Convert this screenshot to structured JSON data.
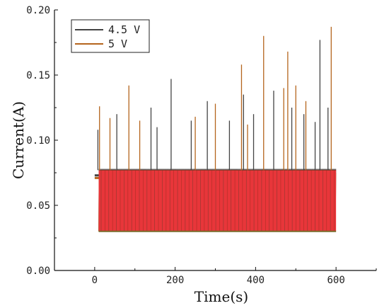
{
  "chart_data": {
    "type": "line",
    "title": "",
    "xlabel": "Time(s)",
    "ylabel": "Current(A)",
    "xlim": [
      -100,
      700
    ],
    "ylim": [
      0.0,
      0.2
    ],
    "x_ticks": [
      0,
      200,
      400,
      600
    ],
    "x_tick_labels": [
      "0",
      "200",
      "400",
      "600"
    ],
    "y_ticks": [
      0.0,
      0.05,
      0.1,
      0.15,
      0.2
    ],
    "y_tick_labels": [
      "0.00",
      "0.05",
      "0.10",
      "0.15",
      "0.20"
    ],
    "grid": false,
    "legend_position": "top-left",
    "series": [
      {
        "name": "4.5 V",
        "color": "#444444",
        "baseline": {
          "x_start": 10,
          "x_end": 600,
          "low": 0.03,
          "high": 0.078
        },
        "initial_segment": {
          "x_start": 0,
          "x_end": 10,
          "value": 0.073
        },
        "spikes": [
          {
            "x": 8,
            "y": 0.108
          },
          {
            "x": 55,
            "y": 0.12
          },
          {
            "x": 140,
            "y": 0.125
          },
          {
            "x": 155,
            "y": 0.11
          },
          {
            "x": 190,
            "y": 0.147
          },
          {
            "x": 240,
            "y": 0.115
          },
          {
            "x": 280,
            "y": 0.13
          },
          {
            "x": 335,
            "y": 0.115
          },
          {
            "x": 370,
            "y": 0.135
          },
          {
            "x": 395,
            "y": 0.12
          },
          {
            "x": 445,
            "y": 0.138
          },
          {
            "x": 490,
            "y": 0.125
          },
          {
            "x": 520,
            "y": 0.12
          },
          {
            "x": 548,
            "y": 0.114
          },
          {
            "x": 560,
            "y": 0.177
          },
          {
            "x": 580,
            "y": 0.125
          }
        ]
      },
      {
        "name": "5 V",
        "color": "#b5651d",
        "baseline": {
          "x_start": 10,
          "x_end": 600,
          "low": 0.03,
          "high": 0.075
        },
        "initial_segment": {
          "x_start": 0,
          "x_end": 10,
          "value": 0.071
        },
        "spikes": [
          {
            "x": 12,
            "y": 0.126
          },
          {
            "x": 38,
            "y": 0.117
          },
          {
            "x": 85,
            "y": 0.142
          },
          {
            "x": 112,
            "y": 0.115
          },
          {
            "x": 250,
            "y": 0.118
          },
          {
            "x": 300,
            "y": 0.128
          },
          {
            "x": 365,
            "y": 0.158
          },
          {
            "x": 380,
            "y": 0.112
          },
          {
            "x": 420,
            "y": 0.18
          },
          {
            "x": 470,
            "y": 0.14
          },
          {
            "x": 480,
            "y": 0.168
          },
          {
            "x": 500,
            "y": 0.142
          },
          {
            "x": 525,
            "y": 0.13
          },
          {
            "x": 588,
            "y": 0.187
          }
        ]
      }
    ],
    "fill_band": {
      "color": "#e8363a",
      "x_start": 10,
      "x_end": 600,
      "low": 0.03,
      "high": 0.077
    }
  }
}
